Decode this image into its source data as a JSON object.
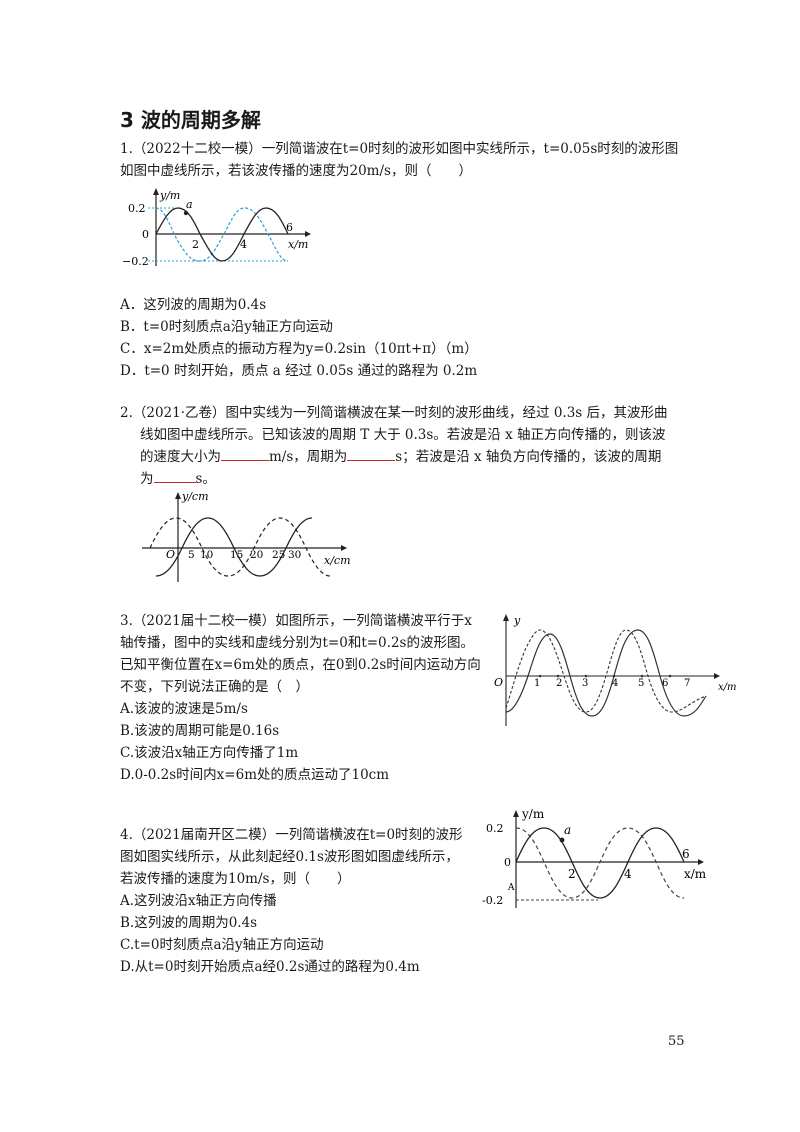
{
  "section_title": "3 波的周期多解",
  "q1": {
    "line1": "1.（2022十二校一模）一列简谐波在t=0时刻的波形如图中实线所示，t=0.05s时刻的波形图",
    "line2": "如图中虚线所示，若该波传播的速度为20m/s，则（　　）",
    "options": [
      "A．这列波的周期为0.4s",
      "B．t=0时刻质点a沿y轴正方向运动",
      "C．x=2m处质点的振动方程为y=0.2sin（10πt+π）（m）",
      "D．t=0 时刻开始，质点 a 经过 0.05s 通过的路程为 0.2m"
    ],
    "fig": {
      "ylabel": "y/m",
      "yticks": [
        "0.2",
        "0",
        "−0.2"
      ],
      "xticks": [
        "2",
        "4",
        "6"
      ],
      "xlabel": "x/m",
      "point": "a"
    }
  },
  "q2": {
    "line1": "2.（2021·乙卷）图中实线为一列简谐横波在某一时刻的波形曲线，经过 0.3s 后，其波形曲",
    "line2": "线如图中虚线所示。已知该波的周期 T 大于 0.3s。若波是沿 x 轴正方向传播的，则该波",
    "line3_a": "的速度大小为",
    "line3_b": "m/s，周期为",
    "line3_c": "s；若波是沿 x 轴负方向传播的，该波的周期",
    "line4_a": "为",
    "line4_b": "s。",
    "fig": {
      "ylabel": "y/cm",
      "origin": "O",
      "xticks": [
        "5",
        "10",
        "15",
        "20",
        "25",
        "30"
      ],
      "xlabel": "x/cm"
    }
  },
  "q3": {
    "lines": [
      "3.（2021届十二校一模）如图所示，一列简谐横波平行于x",
      "轴传播，图中的实线和虚线分别为t=0和t=0.2s的波形图。",
      "已知平衡位置在x=6m处的质点，在0到0.2s时间内运动方向",
      "不变，下列说法正确的是（　）"
    ],
    "options": [
      "A.该波的波速是5m/s",
      "B.该波的周期可能是0.16s",
      "C.该波沿x轴正方向传播了1m",
      "D.0-0.2s时间内x=6m处的质点运动了10cm"
    ],
    "fig": {
      "ylabel": "y",
      "origin": "O",
      "xticks": [
        "1",
        "2",
        "3",
        "4",
        "5",
        "6",
        "7"
      ],
      "xlabel": "x/m"
    }
  },
  "q4": {
    "lines": [
      "4.（2021届南开区二模）一列简谐横波在t=0时刻的波形",
      "图如图实线所示，从此刻起经0.1s波形图如图虚线所示，",
      "若波传播的速度为10m/s，则（　　）"
    ],
    "options": [
      "A.这列波沿x轴正方向传播",
      "B.这列波的周期为0.4s",
      "C.t=0时刻质点a沿y轴正方向运动",
      "D.从t=0时刻开始质点a经0.2s通过的路程为0.4m"
    ],
    "fig": {
      "ylabel": "y/m",
      "yticks": [
        "0.2",
        "0",
        "-0.2"
      ],
      "xticks": [
        "2",
        "4",
        "6"
      ],
      "xlabel": "x/m",
      "point": "a",
      "extra": "A"
    }
  },
  "page_number": "55"
}
